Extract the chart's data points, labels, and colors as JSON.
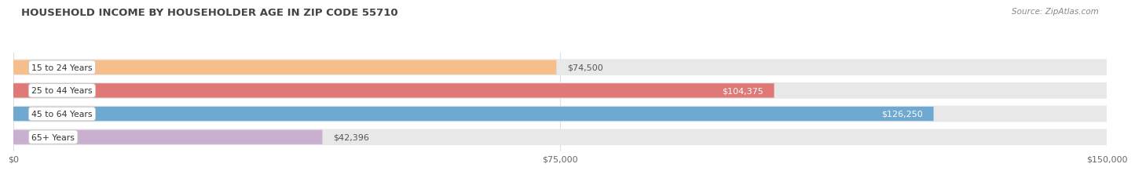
{
  "title": "HOUSEHOLD INCOME BY HOUSEHOLDER AGE IN ZIP CODE 55710",
  "source": "Source: ZipAtlas.com",
  "categories": [
    "15 to 24 Years",
    "25 to 44 Years",
    "45 to 64 Years",
    "65+ Years"
  ],
  "values": [
    74500,
    104375,
    126250,
    42396
  ],
  "bar_colors": [
    "#f5be8a",
    "#e07878",
    "#6fa8d0",
    "#c9afd0"
  ],
  "bar_labels": [
    "$74,500",
    "$104,375",
    "$126,250",
    "$42,396"
  ],
  "label_text_colors": [
    "#555555",
    "#ffffff",
    "#ffffff",
    "#555555"
  ],
  "label_inside": [
    false,
    true,
    true,
    false
  ],
  "xlim": [
    0,
    150000
  ],
  "xticks": [
    0,
    75000,
    150000
  ],
  "xtick_labels": [
    "$0",
    "$75,000",
    "$150,000"
  ],
  "background_color": "#ffffff",
  "bar_bg_color": "#eeeeee",
  "bar_track_color": "#e8e8e8",
  "bar_height": 0.7,
  "title_color": "#444444",
  "source_color": "#888888"
}
